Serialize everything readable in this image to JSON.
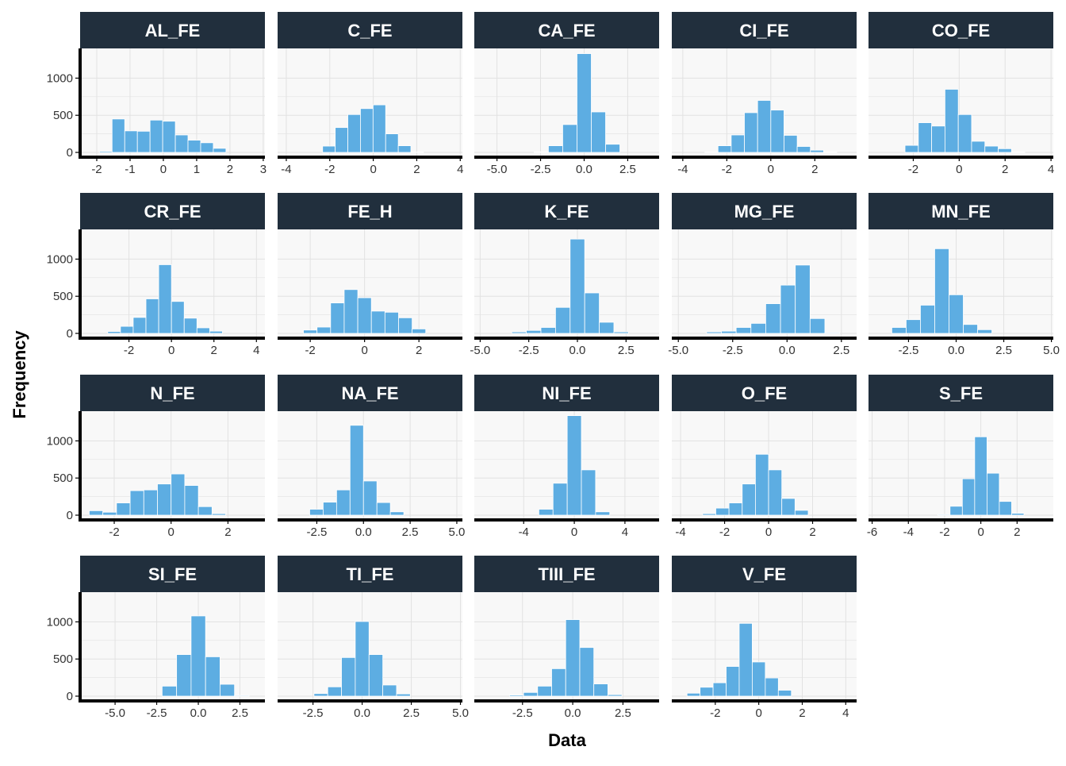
{
  "chart_data": {
    "type": "bar",
    "subtype": "faceted-histogram",
    "xlabel": "Data",
    "ylabel": "Frequency",
    "ylim": [
      0,
      1400
    ],
    "yticks": [
      0,
      500,
      1000
    ],
    "colors": {
      "bar": "#5DADE2",
      "strip": "#212F3D",
      "strip_text": "#FFFFFF",
      "panel": "#F8F8F8",
      "grid": "#E2E2E2",
      "axis": "#000000"
    },
    "grid": true,
    "panels": [
      {
        "title": "AL_FE",
        "xlim": [
          -2.5,
          3.05
        ],
        "xticks": [
          -2,
          -1,
          0,
          1,
          2,
          3
        ],
        "xtick_labels": [
          "-2",
          "-1",
          "0",
          "1",
          "2",
          "3"
        ],
        "bin_width": 0.38,
        "bin_centers": [
          -1.73,
          -1.35,
          -0.97,
          -0.59,
          -0.21,
          0.17,
          0.55,
          0.93,
          1.31,
          1.69,
          2.07,
          2.45
        ],
        "values": [
          15,
          450,
          290,
          285,
          435,
          420,
          235,
          165,
          130,
          55,
          0,
          0
        ]
      },
      {
        "title": "C_FE",
        "xlim": [
          -4.4,
          4.1
        ],
        "xticks": [
          -4,
          -2,
          0,
          2,
          4
        ],
        "xtick_labels": [
          "-4",
          "-2",
          "0",
          "2",
          "4"
        ],
        "bin_width": 0.58,
        "bin_centers": [
          -2.04,
          -1.46,
          -0.88,
          -0.3,
          0.28,
          0.86,
          1.44,
          2.02
        ],
        "values": [
          85,
          335,
          510,
          590,
          640,
          250,
          90,
          5
        ]
      },
      {
        "title": "CA_FE",
        "xlim": [
          -6.3,
          4.3
        ],
        "xticks": [
          -5.0,
          -2.5,
          0.0,
          2.5
        ],
        "xtick_labels": [
          "-5.0",
          "-2.5",
          "0.0",
          "2.5"
        ],
        "bin_width": 0.82,
        "bin_centers": [
          -2.46,
          -1.64,
          -0.82,
          0.0,
          0.82,
          1.64
        ],
        "values": [
          8,
          90,
          375,
          1330,
          545,
          110
        ]
      },
      {
        "title": "CI_FE",
        "xlim": [
          -4.5,
          3.9
        ],
        "xticks": [
          -4,
          -2,
          0,
          2
        ],
        "xtick_labels": [
          "-4",
          "-2",
          "0",
          "2"
        ],
        "bin_width": 0.6,
        "bin_centers": [
          -2.7,
          -2.1,
          -1.5,
          -0.9,
          -0.3,
          0.3,
          0.9,
          1.5,
          2.1,
          2.7
        ],
        "values": [
          5,
          90,
          235,
          535,
          700,
          570,
          230,
          80,
          30,
          5
        ]
      },
      {
        "title": "CO_FE",
        "xlim": [
          -3.95,
          4.1
        ],
        "xticks": [
          -2,
          0,
          2,
          4
        ],
        "xtick_labels": [
          "-2",
          "0",
          "2",
          "4"
        ],
        "bin_width": 0.58,
        "bin_centers": [
          -2.07,
          -1.49,
          -0.91,
          -0.33,
          0.25,
          0.83,
          1.41,
          1.99,
          2.57
        ],
        "values": [
          95,
          400,
          355,
          850,
          510,
          150,
          85,
          50,
          5
        ]
      },
      {
        "title": "CR_FE",
        "xlim": [
          -4.3,
          4.4
        ],
        "xticks": [
          -2,
          0,
          2,
          4
        ],
        "xtick_labels": [
          "-2",
          "0",
          "2",
          "4"
        ],
        "bin_width": 0.6,
        "bin_centers": [
          -2.7,
          -2.1,
          -1.5,
          -0.9,
          -0.3,
          0.3,
          0.9,
          1.5,
          2.1,
          2.7,
          3.3
        ],
        "values": [
          25,
          95,
          215,
          465,
          925,
          430,
          205,
          75,
          30,
          0,
          0
        ]
      },
      {
        "title": "FE_H",
        "xlim": [
          -3.2,
          3.6
        ],
        "xticks": [
          -2,
          0,
          2
        ],
        "xtick_labels": [
          "-2",
          "0",
          "2"
        ],
        "bin_width": 0.5,
        "bin_centers": [
          -2.0,
          -1.5,
          -1.0,
          -0.5,
          0.0,
          0.5,
          1.0,
          1.5,
          2.0
        ],
        "values": [
          45,
          85,
          410,
          590,
          480,
          300,
          285,
          210,
          60
        ]
      },
      {
        "title": "K_FE",
        "xlim": [
          -5.3,
          4.2
        ],
        "xticks": [
          -5.0,
          -2.5,
          0.0,
          2.5
        ],
        "xtick_labels": [
          "-5.0",
          "-2.5",
          "0.0",
          "2.5"
        ],
        "bin_width": 0.75,
        "bin_centers": [
          -3.0,
          -2.25,
          -1.5,
          -0.75,
          0.0,
          0.75,
          1.5,
          2.25
        ],
        "values": [
          20,
          40,
          80,
          350,
          1270,
          545,
          150,
          20
        ]
      },
      {
        "title": "MG_FE",
        "xlim": [
          -5.3,
          3.2
        ],
        "xticks": [
          -5.0,
          -2.5,
          0.0,
          2.5
        ],
        "xtick_labels": [
          "-5.0",
          "-2.5",
          "0.0",
          "2.5"
        ],
        "bin_width": 0.68,
        "bin_centers": [
          -3.36,
          -2.68,
          -2.0,
          -1.32,
          -0.64,
          0.04,
          0.72,
          1.4,
          2.08
        ],
        "values": [
          20,
          30,
          80,
          135,
          400,
          650,
          920,
          200,
          10
        ]
      },
      {
        "title": "MN_FE",
        "xlim": [
          -4.6,
          5.1
        ],
        "xticks": [
          -2.5,
          0.0,
          2.5,
          5.0
        ],
        "xtick_labels": [
          "-2.5",
          "0.0",
          "2.5",
          "5.0"
        ],
        "bin_width": 0.75,
        "bin_centers": [
          -3.0,
          -2.25,
          -1.5,
          -0.75,
          0.0,
          0.75,
          1.5,
          2.25
        ],
        "values": [
          80,
          185,
          380,
          1140,
          520,
          120,
          50,
          0
        ]
      },
      {
        "title": "N_FE",
        "xlim": [
          -3.2,
          3.3
        ],
        "xticks": [
          -2,
          0,
          2
        ],
        "xtick_labels": [
          "-2",
          "0",
          "2"
        ],
        "bin_width": 0.48,
        "bin_centers": [
          -2.64,
          -2.16,
          -1.68,
          -1.2,
          -0.72,
          -0.24,
          0.24,
          0.72,
          1.2,
          1.68,
          2.16
        ],
        "values": [
          60,
          40,
          165,
          330,
          340,
          420,
          555,
          400,
          115,
          20,
          0
        ]
      },
      {
        "title": "NA_FE",
        "xlim": [
          -4.6,
          5.3
        ],
        "xticks": [
          -2.5,
          0.0,
          2.5,
          5.0
        ],
        "xtick_labels": [
          "-2.5",
          "0.0",
          "2.5",
          "5.0"
        ],
        "bin_width": 0.72,
        "bin_centers": [
          -2.52,
          -1.8,
          -1.08,
          -0.36,
          0.36,
          1.08,
          1.8,
          2.52
        ],
        "values": [
          80,
          175,
          340,
          1210,
          460,
          170,
          45,
          0
        ]
      },
      {
        "title": "NI_FE",
        "xlim": [
          -7.9,
          6.7
        ],
        "xticks": [
          -4,
          0,
          4
        ],
        "xtick_labels": [
          "-4",
          "0",
          "4"
        ],
        "bin_width": 1.12,
        "bin_centers": [
          -3.36,
          -2.24,
          -1.12,
          0.0,
          1.12,
          2.24,
          3.36
        ],
        "values": [
          0,
          80,
          430,
          1340,
          610,
          45,
          0
        ]
      },
      {
        "title": "O_FE",
        "xlim": [
          -4.4,
          4.0
        ],
        "xticks": [
          -4,
          -2,
          0,
          2
        ],
        "xtick_labels": [
          "-4",
          "-2",
          "0",
          "2"
        ],
        "bin_width": 0.6,
        "bin_centers": [
          -2.7,
          -2.1,
          -1.5,
          -0.9,
          -0.3,
          0.3,
          0.9,
          1.5,
          2.1,
          2.7
        ],
        "values": [
          20,
          95,
          165,
          420,
          820,
          610,
          225,
          65,
          0,
          0
        ]
      },
      {
        "title": "S_FE",
        "xlim": [
          -6.2,
          4.0
        ],
        "xticks": [
          -6,
          -4,
          -2,
          0,
          2
        ],
        "xtick_labels": [
          "-6",
          "-4",
          "-2",
          "0",
          "2"
        ],
        "bin_width": 0.68,
        "bin_centers": [
          -2.04,
          -1.36,
          -0.68,
          0.0,
          0.68,
          1.36,
          2.04,
          2.72
        ],
        "values": [
          10,
          120,
          490,
          1055,
          565,
          185,
          25,
          0
        ]
      },
      {
        "title": "SI_FE",
        "xlim": [
          -7.1,
          4.0
        ],
        "xticks": [
          -5.0,
          -2.5,
          0.0,
          2.5
        ],
        "xtick_labels": [
          "-5.0",
          "-2.5",
          "0.0",
          "2.5"
        ],
        "bin_width": 0.87,
        "bin_centers": [
          -2.61,
          -1.74,
          -0.87,
          0.0,
          0.87,
          1.74,
          2.61
        ],
        "values": [
          0,
          135,
          560,
          1080,
          530,
          160,
          10
        ]
      },
      {
        "title": "TI_FE",
        "xlim": [
          -4.3,
          5.1
        ],
        "xticks": [
          -2.5,
          0.0,
          2.5,
          5.0
        ],
        "xtick_labels": [
          "-2.5",
          "0.0",
          "2.5",
          "5.0"
        ],
        "bin_width": 0.7,
        "bin_centers": [
          -2.1,
          -1.4,
          -0.7,
          0.0,
          0.7,
          1.4,
          2.1
        ],
        "values": [
          35,
          125,
          520,
          1005,
          560,
          150,
          30
        ]
      },
      {
        "title": "TIII_FE",
        "xlim": [
          -4.9,
          4.3
        ],
        "xticks": [
          -2.5,
          0.0,
          2.5
        ],
        "xtick_labels": [
          "-2.5",
          "0.0",
          "2.5"
        ],
        "bin_width": 0.7,
        "bin_centers": [
          -2.8,
          -2.1,
          -1.4,
          -0.7,
          0.0,
          0.7,
          1.4,
          2.1
        ],
        "values": [
          15,
          50,
          135,
          370,
          1030,
          655,
          165,
          20
        ]
      },
      {
        "title": "V_FE",
        "xlim": [
          -4.0,
          4.5
        ],
        "xticks": [
          -2,
          0,
          2,
          4
        ],
        "xtick_labels": [
          "-2",
          "0",
          "2",
          "4"
        ],
        "bin_width": 0.6,
        "bin_centers": [
          -3.0,
          -2.4,
          -1.8,
          -1.2,
          -0.6,
          0.0,
          0.6,
          1.2,
          1.8
        ],
        "values": [
          40,
          120,
          180,
          400,
          980,
          460,
          245,
          80,
          0
        ]
      }
    ]
  }
}
